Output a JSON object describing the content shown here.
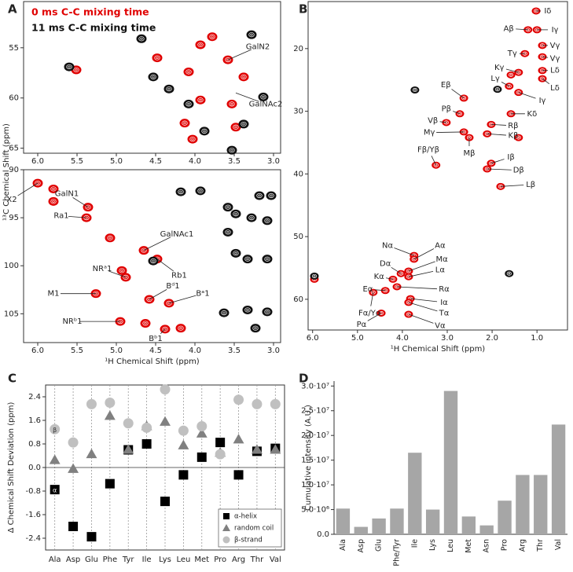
{
  "chart_data": [
    {
      "type": "spectrum",
      "panel": "A",
      "xaxis_inverted": true,
      "yaxis_inverted": true,
      "xlim": [
        2.91,
        6.18
      ],
      "ylim": [
        50.4,
        65.5
      ],
      "xticks": [
        {
          "value": 6,
          "label": "6.0"
        },
        5.5,
        {
          "value": 5,
          "label": "5.0"
        },
        4.5,
        {
          "value": 4,
          "label": "4.0"
        },
        3.5,
        {
          "value": 3,
          "label": "3.0"
        }
      ],
      "yticks": [
        55,
        60,
        65
      ],
      "series": [
        {
          "name": "0 ms C-C mixing time",
          "color": "#e00000",
          "x": [
            3.58,
            3.78,
            3.93,
            4.08,
            3.93,
            3.53,
            4.13,
            3.48,
            3.38,
            4.48,
            4.03,
            5.51
          ],
          "y": [
            56.2,
            53.9,
            54.7,
            57.4,
            60.2,
            60.6,
            62.5,
            62.9,
            57.9,
            56.0,
            64.1,
            57.2
          ]
        },
        {
          "name": "11 ms C-C mixing time",
          "color": "#111111",
          "x": [
            5.6,
            4.53,
            4.33,
            4.08,
            3.88,
            3.38,
            3.13,
            3.53,
            4.68,
            3.28
          ],
          "y": [
            56.9,
            57.9,
            59.1,
            60.6,
            63.3,
            62.6,
            59.9,
            65.2,
            54.1,
            53.7
          ]
        }
      ],
      "annotations": [
        {
          "text": "GalN2",
          "x": 3.2,
          "y": 54.9,
          "target": [
            3.58,
            56.2
          ]
        },
        {
          "text": "GalNAc2",
          "x": 3.1,
          "y": 60.6,
          "target": [
            3.48,
            59.5
          ]
        }
      ]
    },
    {
      "type": "spectrum",
      "xaxis_inverted": true,
      "yaxis_inverted": true,
      "xlim": [
        2.91,
        6.18
      ],
      "ylim": [
        90,
        108
      ],
      "xlabel": "¹H Chemical Shift (ppm)",
      "ylabel": "¹³C Chemical Shift (ppm)",
      "xticks": [
        {
          "value": 6,
          "label": "6.0"
        },
        5.5,
        {
          "value": 5,
          "label": "5.0"
        },
        4.5,
        {
          "value": 4,
          "label": "4.0"
        },
        3.5,
        {
          "value": 3,
          "label": "3.0"
        }
      ],
      "yticks": [
        90,
        95,
        100,
        105
      ],
      "series": [
        {
          "color": "#e00000",
          "x": [
            6.0,
            5.8,
            5.8,
            5.36,
            5.38,
            5.08,
            4.65,
            4.48,
            4.88,
            5.26,
            4.93,
            4.33,
            4.58,
            4.38,
            4.95,
            4.18,
            4.63
          ],
          "y": [
            91.4,
            92.0,
            93.3,
            93.9,
            95.0,
            97.1,
            98.4,
            99.3,
            101.2,
            102.9,
            100.5,
            103.9,
            103.5,
            106.6,
            105.8,
            106.5,
            106.0
          ]
        },
        {
          "color": "#111111",
          "x": [
            3.58,
            3.18,
            3.03,
            3.48,
            3.28,
            3.08,
            3.48,
            3.33,
            3.08,
            3.58,
            4.53,
            4.18,
            3.93,
            3.33,
            3.08,
            3.63,
            3.23
          ],
          "y": [
            93.9,
            92.7,
            92.7,
            94.6,
            95.0,
            95.3,
            98.7,
            99.3,
            99.3,
            96.5,
            99.5,
            92.3,
            92.2,
            104.6,
            104.8,
            104.9,
            106.5
          ]
        }
      ],
      "annotations": [
        {
          "text": "X2",
          "x": 6.33,
          "y": 93.1,
          "target": [
            6.0,
            91.4
          ]
        },
        {
          "text": "GalN1",
          "x": 5.63,
          "y": 92.5,
          "target": [
            5.36,
            93.9
          ]
        },
        {
          "text": "Ra1",
          "x": 5.7,
          "y": 94.8,
          "target": [
            5.38,
            95.0
          ]
        },
        {
          "text": "GalNAc1",
          "x": 4.23,
          "y": 96.7,
          "target": [
            4.65,
            98.4
          ]
        },
        {
          "text": "Rb1",
          "x": 4.2,
          "y": 101.0,
          "target": [
            4.48,
            99.3
          ]
        },
        {
          "text": "NRᵃ1",
          "x": 5.18,
          "y": 100.3,
          "target": [
            4.88,
            101.2
          ]
        },
        {
          "text": "M1",
          "x": 5.8,
          "y": 102.9,
          "target": [
            5.26,
            102.9
          ]
        },
        {
          "text": "Bᵈ1",
          "x": 4.28,
          "y": 102.1,
          "target": [
            4.58,
            103.5
          ]
        },
        {
          "text": "Bᵃ1",
          "x": 3.9,
          "y": 102.9,
          "target": [
            4.33,
            103.9
          ]
        },
        {
          "text": "NRᵇ1",
          "x": 5.56,
          "y": 105.8,
          "target": [
            4.95,
            105.8
          ]
        },
        {
          "text": "Bᵇ1",
          "x": 4.5,
          "y": 107.6,
          "target": [
            4.38,
            106.6
          ]
        }
      ]
    },
    {
      "type": "spectrum",
      "panel": "B",
      "xaxis_inverted": true,
      "yaxis_inverted": true,
      "xlim": [
        0.32,
        6.1
      ],
      "ylim": [
        12.5,
        64.9
      ],
      "xlabel": "¹H Chemical Shift (ppm)",
      "xticks": [
        {
          "value": 6,
          "label": "6.0"
        },
        {
          "value": 5,
          "label": "5.0"
        },
        {
          "value": 4,
          "label": "4.0"
        },
        {
          "value": 3,
          "label": "3.0"
        },
        {
          "value": 2,
          "label": "2.0"
        },
        {
          "value": 1,
          "label": "1.0"
        }
      ],
      "yticks": [
        20,
        30,
        40,
        50,
        60
      ],
      "series": [
        {
          "color": "#e00000",
          "x": [
            1.02,
            1.2,
            1.0,
            0.88,
            0.88,
            1.27,
            1.41,
            0.88,
            0.88,
            1.62,
            1.41,
            2.63,
            2.72,
            1.58,
            2.02,
            3.02,
            2.11,
            2.63,
            2.51,
            3.25,
            2.02,
            2.11,
            1.81,
            3.74,
            3.74,
            3.86,
            4.03,
            3.86,
            4.21,
            4.38,
            4.12,
            3.82,
            4.65,
            3.86,
            4.47,
            3.86,
            5.96,
            1.41,
            1.58
          ],
          "y": [
            14.0,
            17.0,
            17.0,
            19.5,
            21.3,
            20.8,
            23.8,
            23.5,
            24.8,
            26.0,
            27.0,
            27.9,
            30.4,
            30.4,
            32.1,
            31.8,
            33.6,
            33.3,
            34.2,
            38.6,
            38.3,
            39.2,
            42.0,
            53.0,
            53.6,
            55.5,
            55.9,
            56.4,
            56.8,
            58.6,
            58.0,
            59.9,
            58.9,
            60.5,
            62.2,
            62.4,
            56.8,
            34.2,
            24.2
          ]
        },
        {
          "color": "#111111",
          "x": [
            5.96,
            3.72,
            1.62,
            1.88
          ],
          "y": [
            56.3,
            26.6,
            55.9,
            26.5
          ]
        }
      ],
      "annotations": [
        {
          "text": "Iδ",
          "x": 0.76,
          "y": 14.0,
          "target": [
            1.02,
            14.0
          ]
        },
        {
          "text": "Aβ",
          "x": 1.63,
          "y": 16.8,
          "target": [
            1.2,
            17.0
          ]
        },
        {
          "text": "Iγ",
          "x": 0.6,
          "y": 17.0,
          "target": [
            1.0,
            17.0
          ]
        },
        {
          "text": "Vγ",
          "x": 0.6,
          "y": 19.5,
          "target": [
            0.88,
            19.5
          ]
        },
        {
          "text": "Vγ",
          "x": 0.6,
          "y": 21.6,
          "target": [
            0.88,
            21.3
          ]
        },
        {
          "text": "Tγ",
          "x": 1.55,
          "y": 20.8,
          "target": [
            1.27,
            20.8
          ]
        },
        {
          "text": "Kγ",
          "x": 1.84,
          "y": 23.0,
          "target": [
            1.41,
            23.8
          ]
        },
        {
          "text": "Lδ",
          "x": 0.6,
          "y": 23.5,
          "target": [
            0.88,
            23.5
          ]
        },
        {
          "text": "Lγ",
          "x": 1.93,
          "y": 24.8,
          "target": [
            1.62,
            26.0
          ]
        },
        {
          "text": "Lδ",
          "x": 0.6,
          "y": 26.3,
          "target": [
            0.88,
            24.8
          ]
        },
        {
          "text": "Iγ",
          "x": 0.88,
          "y": 28.3,
          "target": [
            1.41,
            27.0
          ]
        },
        {
          "text": "Eβ",
          "x": 3.03,
          "y": 25.8,
          "target": [
            2.63,
            27.9
          ]
        },
        {
          "text": "Kδ",
          "x": 1.11,
          "y": 30.4,
          "target": [
            1.58,
            30.4
          ]
        },
        {
          "text": "Pβ",
          "x": 3.02,
          "y": 29.6,
          "target": [
            2.72,
            30.4
          ]
        },
        {
          "text": "Rβ",
          "x": 1.53,
          "y": 32.3,
          "target": [
            2.02,
            32.1
          ]
        },
        {
          "text": "Vβ",
          "x": 3.32,
          "y": 31.5,
          "target": [
            3.02,
            31.8
          ]
        },
        {
          "text": "Kβ",
          "x": 1.53,
          "y": 33.9,
          "target": [
            2.11,
            33.6
          ]
        },
        {
          "text": "Mγ",
          "x": 3.4,
          "y": 33.4,
          "target": [
            2.63,
            33.3
          ]
        },
        {
          "text": "Mβ",
          "x": 2.51,
          "y": 36.7,
          "target": [
            2.51,
            34.2
          ]
        },
        {
          "text": "Fβ/Yβ",
          "x": 3.42,
          "y": 36.1,
          "target": [
            3.25,
            38.6
          ]
        },
        {
          "text": "Iβ",
          "x": 1.58,
          "y": 37.3,
          "target": [
            2.02,
            38.3
          ]
        },
        {
          "text": "Dβ",
          "x": 1.41,
          "y": 39.4,
          "target": [
            2.11,
            39.2
          ]
        },
        {
          "text": "Lβ",
          "x": 1.14,
          "y": 41.7,
          "target": [
            1.81,
            42.0
          ]
        },
        {
          "text": "Nα",
          "x": 4.33,
          "y": 51.4,
          "target": [
            3.74,
            53.0
          ]
        },
        {
          "text": "Aα",
          "x": 3.16,
          "y": 51.4,
          "target": [
            3.74,
            53.6
          ]
        },
        {
          "text": "Mα",
          "x": 3.12,
          "y": 53.6,
          "target": [
            3.86,
            55.5
          ]
        },
        {
          "text": "Dα",
          "x": 4.38,
          "y": 54.3,
          "target": [
            4.03,
            55.9
          ]
        },
        {
          "text": "Lα",
          "x": 3.16,
          "y": 55.3,
          "target": [
            3.86,
            56.4
          ]
        },
        {
          "text": "Kα",
          "x": 4.52,
          "y": 56.4,
          "target": [
            4.21,
            56.8
          ]
        },
        {
          "text": "Rα",
          "x": 3.07,
          "y": 58.4,
          "target": [
            4.12,
            58.0
          ]
        },
        {
          "text": "Eα",
          "x": 4.77,
          "y": 58.4,
          "target": [
            4.38,
            58.6
          ]
        },
        {
          "text": "Iα",
          "x": 3.07,
          "y": 60.5,
          "target": [
            3.82,
            59.9
          ]
        },
        {
          "text": "Fα/Yα",
          "x": 4.73,
          "y": 62.2,
          "target": [
            4.65,
            58.9
          ]
        },
        {
          "text": "Tα",
          "x": 3.07,
          "y": 62.2,
          "target": [
            3.86,
            60.5
          ]
        },
        {
          "text": "Pα",
          "x": 4.91,
          "y": 64.0,
          "target": [
            4.47,
            62.2
          ]
        },
        {
          "text": "Vα",
          "x": 3.16,
          "y": 64.2,
          "target": [
            3.86,
            62.4
          ]
        }
      ]
    },
    {
      "type": "scatter",
      "panel": "C",
      "ylabel": "Δ Chemical Shift Deviation (ppm)",
      "categories": [
        "Ala",
        "Asp",
        "Glu",
        "Phe",
        "Tyr",
        "Ile",
        "Lys",
        "Leu",
        "Met",
        "Pro",
        "Arg",
        "Thr",
        "Val"
      ],
      "ylim": [
        -2.8,
        2.8
      ],
      "yticks": [
        2.4,
        1.6,
        0.8,
        {
          "value": 0,
          "label": "0.0"
        },
        -0.8,
        -1.6,
        -2.4
      ],
      "legend": "lower right",
      "series": [
        {
          "name": "α-helix",
          "color": "#000000",
          "marker": "square",
          "values": [
            -0.75,
            -2.0,
            -2.35,
            -0.55,
            0.6,
            0.8,
            -1.15,
            -0.25,
            0.35,
            0.85,
            -0.25,
            0.55,
            0.65
          ],
          "point_labels": [
            "α",
            null,
            null,
            null,
            null,
            null,
            null,
            null,
            null,
            null,
            null,
            null,
            null
          ]
        },
        {
          "name": "random coil",
          "color": "#808080",
          "marker": "triangle",
          "values": [
            0.25,
            -0.05,
            0.45,
            1.75,
            0.6,
            1.4,
            1.55,
            0.75,
            1.15,
            0.5,
            0.95,
            0.6,
            0.6
          ]
        },
        {
          "name": "β-strand",
          "color": "#c0c0c0",
          "marker": "circle",
          "values": [
            1.3,
            0.85,
            2.15,
            2.2,
            1.5,
            1.35,
            2.65,
            1.25,
            1.4,
            0.45,
            2.3,
            2.15,
            2.15
          ],
          "point_labels": [
            "β",
            null,
            null,
            null,
            null,
            null,
            null,
            null,
            null,
            null,
            null,
            null,
            null
          ]
        }
      ]
    },
    {
      "type": "bar",
      "panel": "D",
      "ylabel": "Cumulative intensity (A.U.)",
      "categories": [
        "Ala",
        "Asp",
        "Glu",
        "Phe/Tyr",
        "Ile",
        "Lys",
        "Leu",
        "Met",
        "Asn",
        "Pro",
        "Arg",
        "Thr",
        "Val"
      ],
      "values": [
        5200000,
        1500000,
        3200000,
        5200000,
        16500000,
        5000000,
        29000000,
        3600000,
        1800000,
        6800000,
        12000000,
        12000000,
        22200000
      ],
      "color": "#a6a6a6",
      "ylim": [
        0,
        31000000
      ],
      "yticks": [
        {
          "value": 0,
          "label": "0.0"
        },
        {
          "value": 5000000,
          "label": "5.0·10⁶"
        },
        {
          "value": 10000000,
          "label": "1.0·10⁷"
        },
        {
          "value": 15000000,
          "label": "1.5·10⁷"
        },
        {
          "value": 20000000,
          "label": "2.0·10⁷"
        },
        {
          "value": 25000000,
          "label": "2.5·10⁷"
        },
        {
          "value": 30000000,
          "label": "3.0·10⁷"
        }
      ]
    }
  ]
}
